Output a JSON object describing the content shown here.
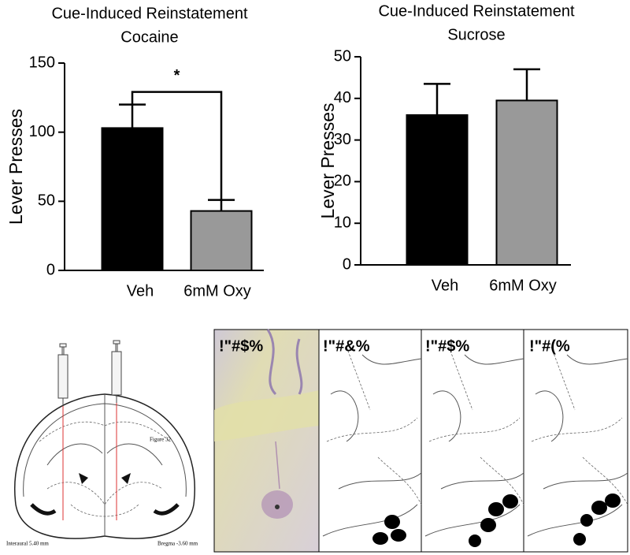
{
  "chart_data": [
    {
      "type": "bar",
      "title": "Cue-Induced Reinstatement",
      "subtitle": "Cocaine",
      "y_label": "Lever Presses",
      "categories": [
        "Veh",
        "6mM Oxy"
      ],
      "values": [
        103,
        43
      ],
      "errors": [
        17,
        8
      ],
      "colors": [
        "#000000",
        "#999999"
      ],
      "ylim": [
        0,
        150
      ],
      "yticks": [
        0,
        50,
        100,
        150
      ],
      "annotation": "*"
    },
    {
      "type": "bar",
      "title": "Cue-Induced Reinstatement",
      "subtitle": "Sucrose",
      "y_label": "Lever Presses",
      "categories": [
        "Veh",
        "6mM Oxy"
      ],
      "values": [
        36,
        39.5
      ],
      "errors": [
        7.5,
        7.5
      ],
      "colors": [
        "#000000",
        "#999999"
      ],
      "ylim": [
        0,
        50
      ],
      "yticks": [
        0,
        10,
        20,
        30,
        40,
        50
      ]
    }
  ],
  "figure_label": "Figure 32",
  "interaural_label": "Interaural 5.40 mm",
  "bregma_label": "Bregma -3.60 mm",
  "panels": [
    "!\"#$%",
    "!\"#&%",
    "!\"#$%",
    "!\"#(%"
  ]
}
